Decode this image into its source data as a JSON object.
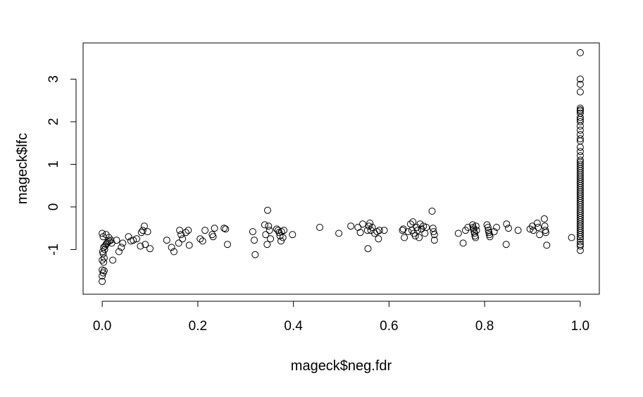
{
  "chart_data": {
    "type": "scatter",
    "xlabel": "mageck$neg.fdr",
    "ylabel": "mageck$lfc",
    "xlim": [
      -0.04,
      1.04
    ],
    "ylim": [
      -2.05,
      3.85
    ],
    "x_ticks": [
      0.0,
      0.2,
      0.4,
      0.6,
      0.8,
      1.0
    ],
    "x_tick_labels": [
      "0.0",
      "0.2",
      "0.4",
      "0.6",
      "0.8",
      "1.0"
    ],
    "y_ticks": [
      -1,
      0,
      1,
      2,
      3
    ],
    "y_tick_labels": [
      "-1",
      "0",
      "1",
      "2",
      "3"
    ],
    "grid": false,
    "legend": "none",
    "marker": "open-circle",
    "color": "#000000",
    "points": [
      [
        0.0,
        -1.75
      ],
      [
        0.0,
        -1.62
      ],
      [
        0.002,
        -1.55
      ],
      [
        0.004,
        -1.5
      ],
      [
        0.0,
        -1.48
      ],
      [
        0.003,
        -1.3
      ],
      [
        0.0,
        -1.25
      ],
      [
        0.004,
        -1.2
      ],
      [
        0.002,
        -1.1
      ],
      [
        0.001,
        -1.05
      ],
      [
        0.005,
        -1.0
      ],
      [
        0.003,
        -0.95
      ],
      [
        0.006,
        -0.92
      ],
      [
        0.008,
        -0.88
      ],
      [
        0.01,
        -0.85
      ],
      [
        0.012,
        -0.82
      ],
      [
        0.015,
        -0.8
      ],
      [
        0.002,
        -0.7
      ],
      [
        0.0,
        -0.62
      ],
      [
        0.008,
        -0.65
      ],
      [
        0.014,
        -0.72
      ],
      [
        0.018,
        -0.78
      ],
      [
        0.022,
        -1.25
      ],
      [
        0.02,
        -0.85
      ],
      [
        0.03,
        -0.78
      ],
      [
        0.035,
        -1.05
      ],
      [
        0.04,
        -0.95
      ],
      [
        0.043,
        -0.85
      ],
      [
        0.055,
        -0.7
      ],
      [
        0.06,
        -0.8
      ],
      [
        0.065,
        -0.78
      ],
      [
        0.072,
        -0.75
      ],
      [
        0.08,
        -0.92
      ],
      [
        0.082,
        -0.6
      ],
      [
        0.085,
        -0.55
      ],
      [
        0.088,
        -0.45
      ],
      [
        0.09,
        -0.88
      ],
      [
        0.095,
        -0.58
      ],
      [
        0.1,
        -0.98
      ],
      [
        0.135,
        -0.78
      ],
      [
        0.145,
        -0.95
      ],
      [
        0.15,
        -1.05
      ],
      [
        0.16,
        -0.85
      ],
      [
        0.162,
        -0.55
      ],
      [
        0.165,
        -0.65
      ],
      [
        0.168,
        -0.75
      ],
      [
        0.175,
        -0.6
      ],
      [
        0.18,
        -0.55
      ],
      [
        0.182,
        -0.9
      ],
      [
        0.205,
        -0.75
      ],
      [
        0.21,
        -0.8
      ],
      [
        0.215,
        -0.55
      ],
      [
        0.23,
        -0.65
      ],
      [
        0.232,
        -0.7
      ],
      [
        0.235,
        -0.5
      ],
      [
        0.255,
        -0.5
      ],
      [
        0.258,
        -0.52
      ],
      [
        0.262,
        -0.88
      ],
      [
        0.315,
        -0.58
      ],
      [
        0.318,
        -0.78
      ],
      [
        0.32,
        -1.12
      ],
      [
        0.34,
        -0.42
      ],
      [
        0.342,
        -0.65
      ],
      [
        0.345,
        -0.88
      ],
      [
        0.346,
        -0.08
      ],
      [
        0.348,
        -0.45
      ],
      [
        0.35,
        -0.55
      ],
      [
        0.352,
        -0.75
      ],
      [
        0.365,
        -0.52
      ],
      [
        0.368,
        -0.55
      ],
      [
        0.37,
        -0.6
      ],
      [
        0.372,
        -0.68
      ],
      [
        0.374,
        -0.8
      ],
      [
        0.375,
        -0.58
      ],
      [
        0.378,
        -0.72
      ],
      [
        0.38,
        -0.55
      ],
      [
        0.398,
        -0.65
      ],
      [
        0.455,
        -0.48
      ],
      [
        0.495,
        -0.62
      ],
      [
        0.52,
        -0.45
      ],
      [
        0.535,
        -0.48
      ],
      [
        0.54,
        -0.6
      ],
      [
        0.545,
        -0.4
      ],
      [
        0.555,
        -0.55
      ],
      [
        0.556,
        -0.98
      ],
      [
        0.558,
        -0.45
      ],
      [
        0.56,
        -0.38
      ],
      [
        0.562,
        -0.55
      ],
      [
        0.565,
        -0.48
      ],
      [
        0.57,
        -0.62
      ],
      [
        0.575,
        -0.58
      ],
      [
        0.578,
        -0.75
      ],
      [
        0.58,
        -0.55
      ],
      [
        0.59,
        -0.55
      ],
      [
        0.628,
        -0.55
      ],
      [
        0.63,
        -0.52
      ],
      [
        0.632,
        -0.72
      ],
      [
        0.64,
        -0.58
      ],
      [
        0.645,
        -0.4
      ],
      [
        0.648,
        -0.55
      ],
      [
        0.65,
        -0.35
      ],
      [
        0.652,
        -0.62
      ],
      [
        0.655,
        -0.68
      ],
      [
        0.658,
        -0.48
      ],
      [
        0.66,
        -0.55
      ],
      [
        0.663,
        -0.72
      ],
      [
        0.665,
        -0.4
      ],
      [
        0.668,
        -0.52
      ],
      [
        0.672,
        -0.45
      ],
      [
        0.675,
        -0.62
      ],
      [
        0.678,
        -0.48
      ],
      [
        0.69,
        -0.1
      ],
      [
        0.692,
        -0.5
      ],
      [
        0.693,
        -0.58
      ],
      [
        0.695,
        -0.65
      ],
      [
        0.695,
        -0.78
      ],
      [
        0.745,
        -0.62
      ],
      [
        0.755,
        -0.85
      ],
      [
        0.76,
        -0.55
      ],
      [
        0.765,
        -0.48
      ],
      [
        0.775,
        -0.42
      ],
      [
        0.776,
        -0.48
      ],
      [
        0.777,
        -0.52
      ],
      [
        0.778,
        -0.58
      ],
      [
        0.779,
        -0.62
      ],
      [
        0.78,
        -0.68
      ],
      [
        0.781,
        -0.72
      ],
      [
        0.782,
        -0.45
      ],
      [
        0.783,
        -0.55
      ],
      [
        0.805,
        -0.42
      ],
      [
        0.807,
        -0.48
      ],
      [
        0.808,
        -0.55
      ],
      [
        0.809,
        -0.6
      ],
      [
        0.81,
        -0.65
      ],
      [
        0.811,
        -0.7
      ],
      [
        0.82,
        -0.58
      ],
      [
        0.825,
        -0.48
      ],
      [
        0.845,
        -0.88
      ],
      [
        0.846,
        -0.4
      ],
      [
        0.85,
        -0.5
      ],
      [
        0.87,
        -0.55
      ],
      [
        0.895,
        -0.52
      ],
      [
        0.9,
        -0.45
      ],
      [
        0.902,
        -0.55
      ],
      [
        0.91,
        -0.38
      ],
      [
        0.912,
        -0.48
      ],
      [
        0.915,
        -0.65
      ],
      [
        0.925,
        -0.28
      ],
      [
        0.926,
        -0.45
      ],
      [
        0.927,
        -0.55
      ],
      [
        0.928,
        -0.6
      ],
      [
        0.93,
        -0.9
      ],
      [
        0.982,
        -0.72
      ],
      [
        1.0,
        3.62
      ],
      [
        1.0,
        3.0
      ],
      [
        1.0,
        2.88
      ],
      [
        1.0,
        2.7
      ],
      [
        1.0,
        2.32
      ],
      [
        1.0,
        2.28
      ],
      [
        1.0,
        2.25
      ],
      [
        1.0,
        2.2
      ],
      [
        1.0,
        2.1
      ],
      [
        1.0,
        2.05
      ],
      [
        1.0,
        2.0
      ],
      [
        1.0,
        1.9
      ],
      [
        1.0,
        1.8
      ],
      [
        1.0,
        1.7
      ],
      [
        1.0,
        1.6
      ],
      [
        1.0,
        1.55
      ],
      [
        1.0,
        1.4
      ],
      [
        1.0,
        1.3
      ],
      [
        1.0,
        1.2
      ],
      [
        1.0,
        1.1
      ],
      [
        1.0,
        1.05
      ],
      [
        1.0,
        1.0
      ],
      [
        1.0,
        0.95
      ],
      [
        1.0,
        0.9
      ],
      [
        1.0,
        0.85
      ],
      [
        1.0,
        0.8
      ],
      [
        1.0,
        0.75
      ],
      [
        1.0,
        0.7
      ],
      [
        1.0,
        0.65
      ],
      [
        1.0,
        0.6
      ],
      [
        1.0,
        0.55
      ],
      [
        1.0,
        0.5
      ],
      [
        1.0,
        0.45
      ],
      [
        1.0,
        0.4
      ],
      [
        1.0,
        0.35
      ],
      [
        1.0,
        0.3
      ],
      [
        1.0,
        0.25
      ],
      [
        1.0,
        0.2
      ],
      [
        1.0,
        0.15
      ],
      [
        1.0,
        0.1
      ],
      [
        1.0,
        0.05
      ],
      [
        1.0,
        0.0
      ],
      [
        1.0,
        -0.05
      ],
      [
        1.0,
        -0.1
      ],
      [
        1.0,
        -0.15
      ],
      [
        1.0,
        -0.2
      ],
      [
        1.0,
        -0.25
      ],
      [
        1.0,
        -0.3
      ],
      [
        1.0,
        -0.35
      ],
      [
        1.0,
        -0.4
      ],
      [
        1.0,
        -0.45
      ],
      [
        1.0,
        -0.5
      ],
      [
        1.0,
        -0.55
      ],
      [
        1.0,
        -0.6
      ],
      [
        1.0,
        -0.65
      ],
      [
        1.0,
        -0.7
      ],
      [
        1.0,
        -0.75
      ],
      [
        1.0,
        -0.82
      ],
      [
        1.0,
        -0.88
      ],
      [
        1.0,
        -0.92
      ],
      [
        1.0,
        -1.02
      ]
    ]
  }
}
